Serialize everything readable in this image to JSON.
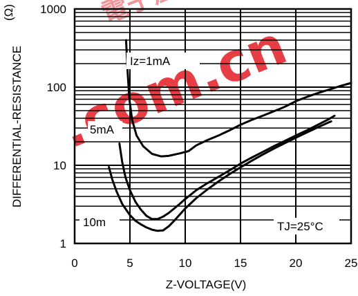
{
  "chart_data": {
    "type": "line",
    "xlabel": "Z-VOLTAGE(V)",
    "ylabel": "DIFFERENTIAL-RESISTANCE",
    "ylabel_unit": "(Ω)",
    "x_scale": "linear",
    "y_scale": "log",
    "xlim": [
      0,
      25
    ],
    "ylim": [
      1,
      1000
    ],
    "x_ticks": [
      "0",
      "5",
      "10",
      "15",
      "20",
      "25"
    ],
    "y_ticks": [
      "1",
      "10",
      "100",
      "1000"
    ],
    "grid": true,
    "series": [
      {
        "name": "Iz=1mA",
        "points": [
          [
            4.65,
            400
          ],
          [
            4.8,
            150
          ],
          [
            4.95,
            70
          ],
          [
            5.2,
            38
          ],
          [
            5.6,
            24
          ],
          [
            6.2,
            17.5
          ],
          [
            7,
            14
          ],
          [
            7.8,
            13
          ],
          [
            8.5,
            13.2
          ],
          [
            9.5,
            14.2
          ],
          [
            10.3,
            15.2
          ],
          [
            11,
            18
          ],
          [
            12,
            21
          ],
          [
            13,
            24
          ],
          [
            14,
            28
          ],
          [
            15,
            33
          ],
          [
            16,
            38
          ],
          [
            17,
            43
          ],
          [
            18,
            49
          ],
          [
            19,
            56
          ],
          [
            20,
            66
          ],
          [
            21,
            75
          ],
          [
            22,
            84
          ],
          [
            23,
            93
          ],
          [
            24,
            103
          ],
          [
            25,
            113
          ]
        ]
      },
      {
        "name": "5mA",
        "points": [
          [
            4.05,
            19
          ],
          [
            4.3,
            11
          ],
          [
            4.6,
            7
          ],
          [
            5,
            4.8
          ],
          [
            5.5,
            3.4
          ],
          [
            6,
            2.7
          ],
          [
            6.5,
            2.25
          ],
          [
            7,
            2.05
          ],
          [
            7.5,
            2.05
          ],
          [
            8,
            2.2
          ],
          [
            8.5,
            2.45
          ],
          [
            9,
            2.8
          ],
          [
            9.5,
            3.2
          ],
          [
            10,
            3.7
          ],
          [
            11,
            4.8
          ],
          [
            12,
            5.9
          ],
          [
            13,
            7.1
          ],
          [
            14,
            8.6
          ],
          [
            15,
            10.5
          ],
          [
            16,
            12.5
          ],
          [
            17,
            14.8
          ],
          [
            18,
            17.5
          ],
          [
            19,
            20.5
          ],
          [
            20,
            24
          ],
          [
            21,
            28
          ],
          [
            22,
            33
          ],
          [
            23,
            39
          ],
          [
            23.5,
            43
          ]
        ]
      },
      {
        "name": "10m",
        "points": [
          [
            3.1,
            9.5
          ],
          [
            3.4,
            6.6
          ],
          [
            3.8,
            4.6
          ],
          [
            4.3,
            3.2
          ],
          [
            5,
            2.3
          ],
          [
            5.5,
            1.95
          ],
          [
            6,
            1.75
          ],
          [
            6.5,
            1.6
          ],
          [
            7,
            1.5
          ],
          [
            7.5,
            1.45
          ],
          [
            8,
            1.47
          ],
          [
            8.5,
            1.65
          ],
          [
            9,
            1.95
          ],
          [
            10,
            2.8
          ],
          [
            11,
            3.8
          ],
          [
            12,
            4.9
          ],
          [
            13,
            6.2
          ],
          [
            14,
            7.7
          ],
          [
            15,
            9.4
          ],
          [
            16,
            11.4
          ],
          [
            17,
            13.7
          ],
          [
            18,
            16.3
          ],
          [
            19,
            19.2
          ],
          [
            20,
            22.5
          ],
          [
            21,
            26.3
          ],
          [
            22,
            30.7
          ],
          [
            23,
            35.5
          ],
          [
            23.2,
            36.5
          ]
        ]
      }
    ],
    "annotations": [
      "Iz=1mA",
      "5mA",
      "10m",
      "TJ=25°C"
    ]
  },
  "watermark": {
    "chinese": "電子產品",
    "latin": ".com.cn",
    "color": "#e3242b"
  }
}
